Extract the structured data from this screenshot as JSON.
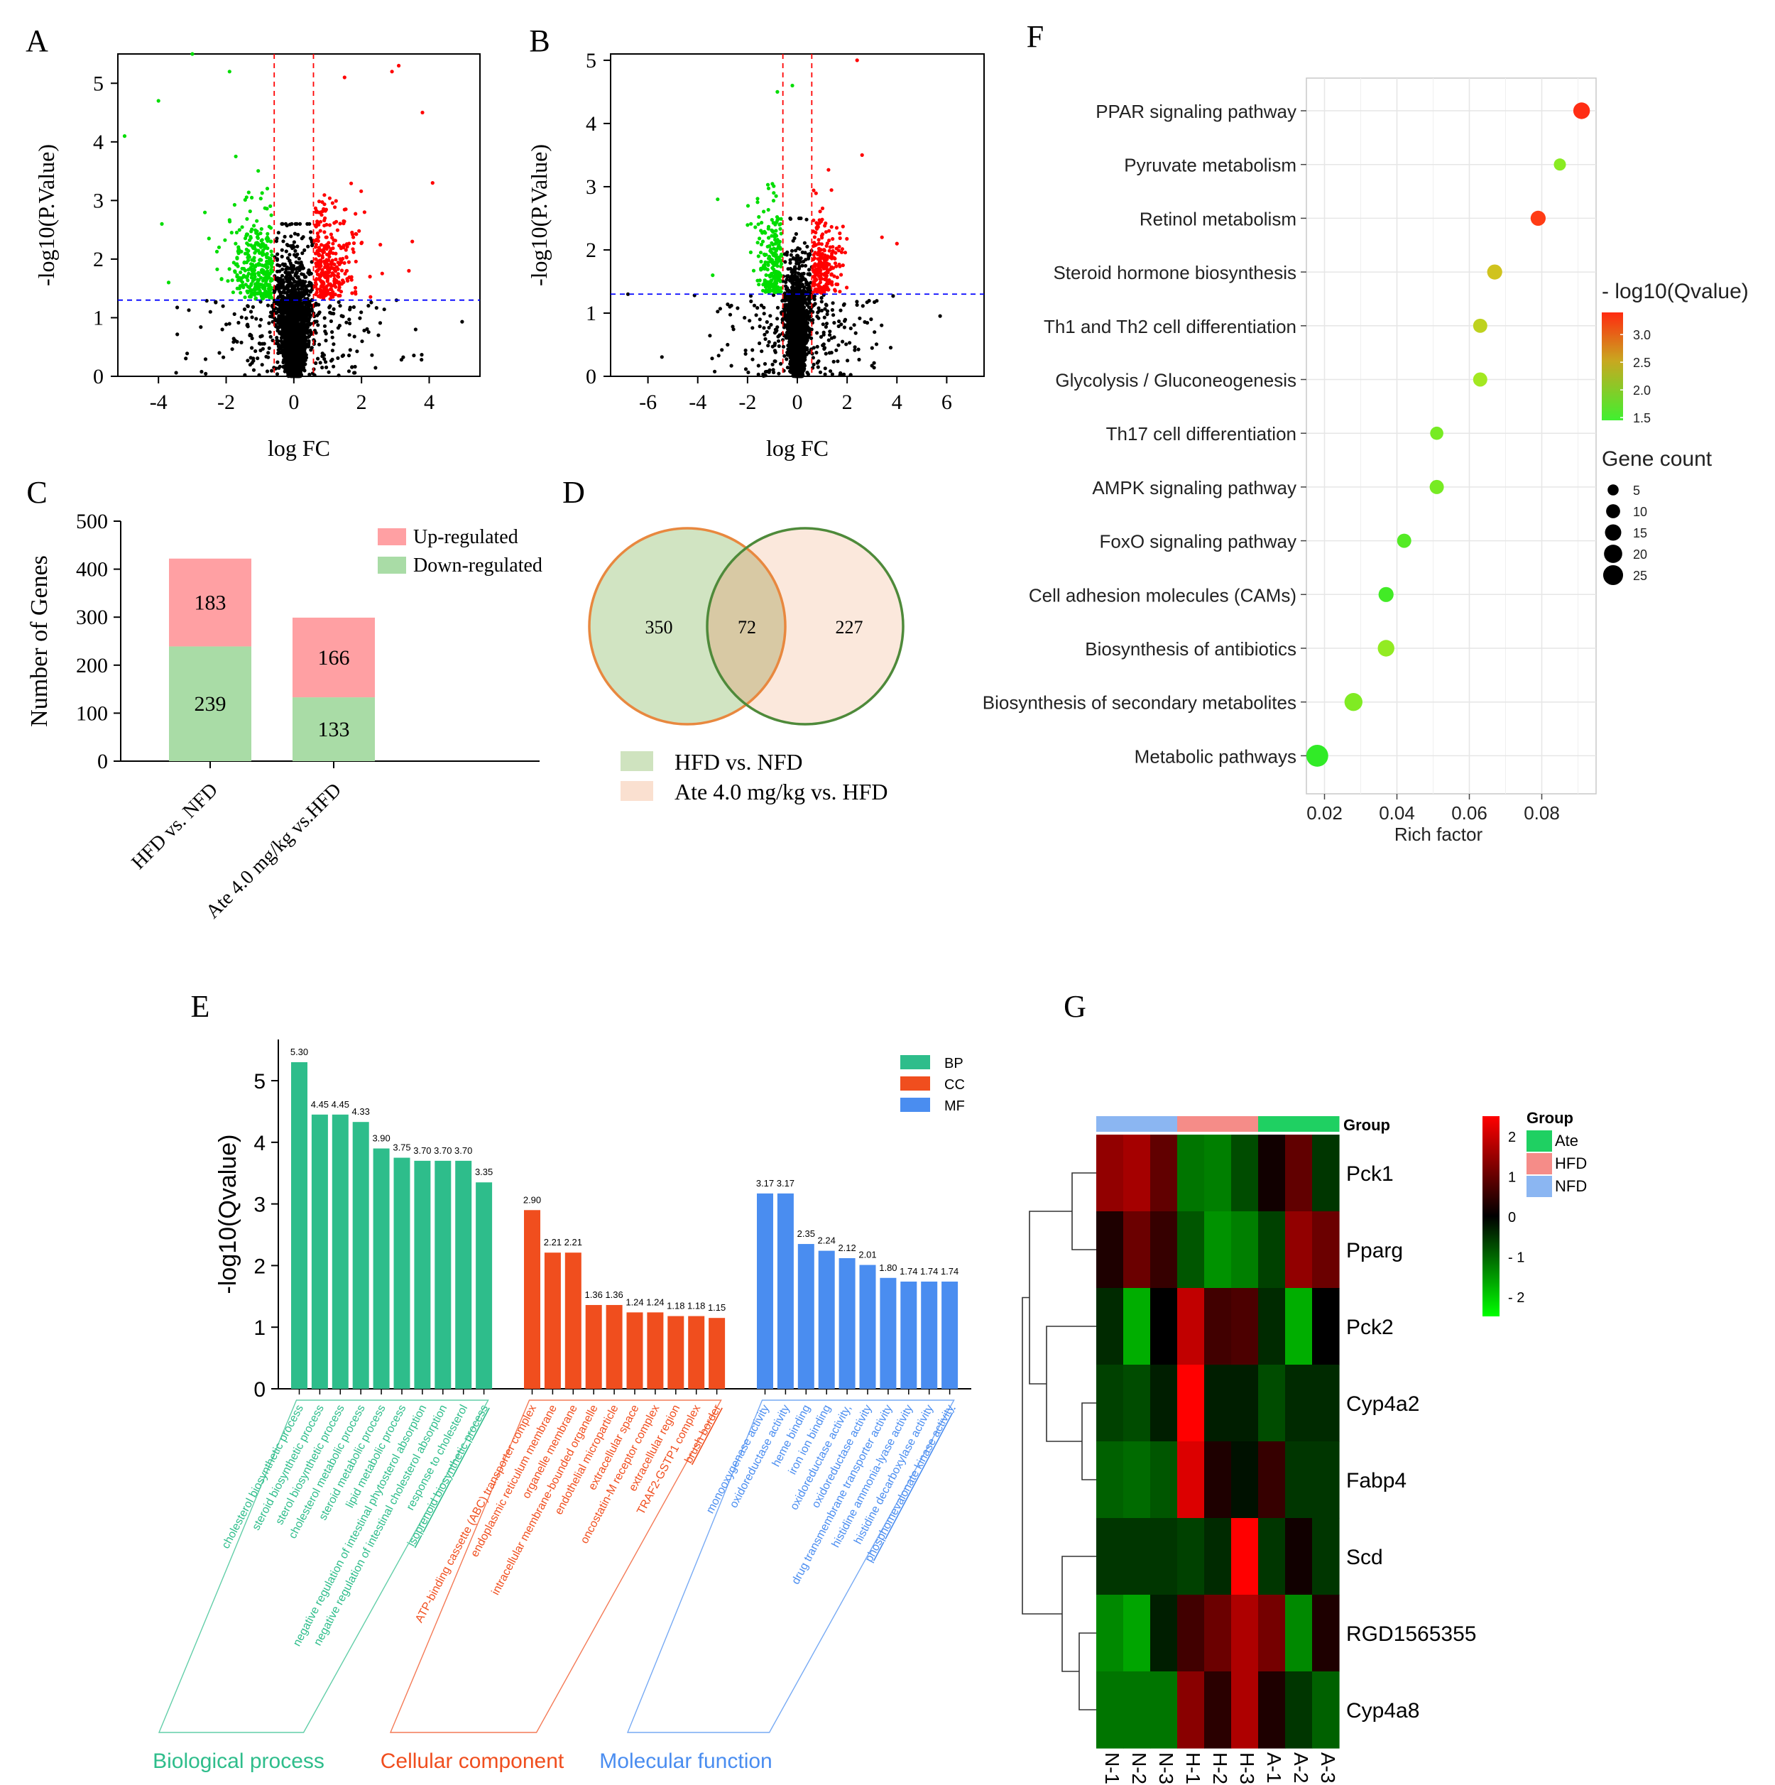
{
  "panel_labels": [
    "A",
    "B",
    "C",
    "D",
    "E",
    "F",
    "G"
  ],
  "chart_data": [
    {
      "id": "A",
      "type": "scatter",
      "title": "",
      "xlabel": "log FC",
      "ylabel": "-log10(P.Value)",
      "xlim": [
        -5.2,
        5.5
      ],
      "ylim": [
        0,
        5.5
      ],
      "xticks": [
        -4,
        -2,
        0,
        2,
        4
      ],
      "yticks": [
        0,
        1,
        2,
        3,
        4,
        5
      ],
      "thresholds": {
        "logfc": [
          -0.58,
          0.58
        ],
        "neglog10p": 1.3
      },
      "colors": {
        "up": "#ff0000",
        "down": "#00dd00",
        "ns": "#000000",
        "threshold_v": "#ff0000",
        "threshold_h": "#0000ff"
      },
      "note": "Points generated from summary shape: down-regulated green left, up-regulated red right, non-significant black V."
    },
    {
      "id": "B",
      "type": "scatter",
      "title": "",
      "xlabel": "log FC",
      "ylabel": "-log10(P.Value)",
      "xlim": [
        -7.5,
        7.5
      ],
      "ylim": [
        0,
        5.1
      ],
      "xticks": [
        -6,
        -4,
        -2,
        0,
        2,
        4,
        6
      ],
      "yticks": [
        0,
        1,
        2,
        3,
        4,
        5
      ],
      "thresholds": {
        "logfc": [
          -0.58,
          0.58
        ],
        "neglog10p": 1.3
      },
      "colors": {
        "up": "#ff0000",
        "down": "#00dd00",
        "ns": "#000000",
        "threshold_v": "#ff0000",
        "threshold_h": "#0000ff"
      }
    },
    {
      "id": "C",
      "type": "bar",
      "stacked": true,
      "categories": [
        "HFD vs. NFD",
        "Ate 4.0 mg/kg vs.HFD"
      ],
      "series": [
        {
          "name": "Down-regulated",
          "values": [
            239,
            133
          ],
          "color": "#a9dca6"
        },
        {
          "name": "Up-regulated",
          "values": [
            183,
            166
          ],
          "color": "#ffa0a3"
        }
      ],
      "ylabel": "Number of Genes",
      "ylim": [
        0,
        500
      ],
      "yticks": [
        0,
        100,
        200,
        300,
        400,
        500
      ],
      "legend": "top-right"
    },
    {
      "id": "D",
      "type": "venn",
      "sets": [
        {
          "name": "HFD vs. NFD",
          "only": 350,
          "fill": "#cfe3bf",
          "stroke": "#e8883f"
        },
        {
          "name": "Ate 4.0 mg/kg vs. HFD",
          "only": 227,
          "fill": "#fae0d0",
          "stroke": "#4e8a3a"
        }
      ],
      "intersection": 72
    },
    {
      "id": "E",
      "type": "bar",
      "ylabel": "-log10(Qvalue)",
      "ylim": [
        0,
        5.4
      ],
      "yticks": [
        0,
        1,
        2,
        3,
        4,
        5
      ],
      "groups": [
        {
          "key": "BP",
          "name": "Biological process",
          "color": "#2ebd8b",
          "categories": [
            "cholesterol biosynthetic process",
            "steroid biosynthetic process",
            "sterol biosynthetic process",
            "cholesterol metabolic process",
            "steroid metabolic process",
            "lipid metabolic process",
            "negative regulation of intestinal phytosterol absorption",
            "negative regulation of intestinal cholesterol absorption",
            "response to cholesterol",
            "isoprenoid biosynthetic process"
          ],
          "values": [
            5.3,
            4.45,
            4.45,
            4.33,
            3.9,
            3.75,
            3.7,
            3.7,
            3.7,
            3.35
          ],
          "labels": [
            "5.30",
            "4.45",
            "4.45",
            "4.33",
            "3.90",
            "3.75",
            "3.70",
            "3.70",
            "3.70",
            "3.35"
          ]
        },
        {
          "key": "CC",
          "name": "Cellular component",
          "color": "#f04e1e",
          "categories": [
            "ATP-binding cassette (ABC) transporter complex",
            "endoplasmic reticulum membrane",
            "organelle membrane",
            "intracellular membrane-bounded organelle",
            "endothelial microparticle",
            "extracellular space",
            "oncostatin-M receptor complex",
            "extracellular region",
            "TRAF2-GSTP1 complex",
            "brush border"
          ],
          "values": [
            2.9,
            2.21,
            2.21,
            1.36,
            1.36,
            1.24,
            1.24,
            1.18,
            1.18,
            1.15
          ],
          "labels": [
            "2.90",
            "2.21",
            "2.21",
            "1.36",
            "1.36",
            "1.24",
            "1.24",
            "1.18",
            "1.18",
            "1.15"
          ]
        },
        {
          "key": "MF",
          "name": "Molecular function",
          "color": "#4a8df0",
          "categories": [
            "monooxygenase activity",
            "oxidoreductase activity",
            "heme binding",
            "iron ion binding",
            "oxidoreductase activity,",
            "oxidoreductase activity",
            "drug transmembrane transporter activity",
            "histidine ammonia-lyase activity",
            "histidine decarboxylase activity",
            "phosphomevalonate kinase activity"
          ],
          "values": [
            3.17,
            3.17,
            2.35,
            2.24,
            2.12,
            2.01,
            1.8,
            1.74,
            1.74,
            1.74
          ],
          "labels": [
            "3.17",
            "3.17",
            "2.35",
            "2.24",
            "2.12",
            "2.01",
            "1.80",
            "1.74",
            "1.74",
            "1.74"
          ]
        }
      ],
      "legend": "top-right"
    },
    {
      "id": "F",
      "type": "scatter",
      "subtype": "bubble",
      "xlabel": "Rich factor",
      "xlim": [
        0.015,
        0.095
      ],
      "xticks": [
        0.02,
        0.04,
        0.06,
        0.08
      ],
      "xticklabels": [
        "0.02",
        "0.04",
        "0.06",
        "0.08"
      ],
      "categories": [
        "PPAR signaling pathway",
        "Pyruvate metabolism",
        "Retinol metabolism",
        "Steroid hormone biosynthesis",
        "Th1 and Th2 cell differentiation",
        "Glycolysis / Gluconeogenesis",
        "Th17 cell differentiation",
        "AMPK signaling pathway",
        "FoxO signaling pathway",
        "Cell adhesion molecules (CAMs)",
        "Biosynthesis of antibiotics",
        "Biosynthesis of secondary metabolites",
        "Metabolic pathways"
      ],
      "rich_factor": [
        0.091,
        0.085,
        0.079,
        0.067,
        0.063,
        0.063,
        0.051,
        0.051,
        0.042,
        0.037,
        0.037,
        0.028,
        0.018
      ],
      "neglog10q": [
        3.4,
        2.0,
        3.3,
        2.4,
        2.3,
        2.15,
        1.9,
        1.9,
        1.7,
        1.6,
        2.05,
        1.95,
        1.5
      ],
      "gene_count": [
        8,
        3,
        6,
        6,
        5,
        5,
        4,
        5,
        5,
        6,
        8,
        10,
        17
      ],
      "color_legend": {
        "title": "- log10(Qvalue)",
        "ticks": [
          "3.0",
          "2.5",
          "2.0",
          "1.5"
        ],
        "tick_values": [
          3.0,
          2.5,
          2.0,
          1.5
        ],
        "range": [
          1.45,
          3.4
        ]
      },
      "size_legend": {
        "title": "Gene count",
        "values": [
          5,
          10,
          15,
          20,
          25
        ],
        "labels": [
          "5",
          "10",
          "15",
          "20",
          "25"
        ]
      }
    },
    {
      "id": "G",
      "type": "heatmap",
      "rows": [
        "Pck1",
        "Pparg",
        "Pck2",
        "Cyp4a2",
        "Fabp4",
        "Scd",
        "RGD1565355",
        "Cyp4a8"
      ],
      "cols": [
        "N-1",
        "N-2",
        "N-3",
        "H-1",
        "H-2",
        "H-3",
        "A-1",
        "A-2",
        "A-3"
      ],
      "col_groups": [
        "NFD",
        "NFD",
        "NFD",
        "HFD",
        "HFD",
        "HFD",
        "Ate",
        "Ate",
        "Ate"
      ],
      "values": [
        [
          1.3,
          1.5,
          0.8,
          -1.0,
          -1.1,
          -0.6,
          0.1,
          0.8,
          -0.4
        ],
        [
          0.2,
          0.9,
          0.4,
          -0.7,
          -1.3,
          -1.1,
          -0.5,
          1.3,
          0.9
        ],
        [
          -0.3,
          -1.6,
          0.0,
          1.8,
          0.5,
          0.6,
          -0.3,
          -1.6,
          0.0
        ],
        [
          -0.5,
          -0.6,
          -0.2,
          2.5,
          -0.2,
          -0.2,
          -0.6,
          -0.3,
          -0.3
        ],
        [
          -0.8,
          -0.9,
          -0.7,
          2.1,
          0.2,
          -0.1,
          0.4,
          -0.4,
          -0.4
        ],
        [
          -0.4,
          -0.4,
          -0.4,
          -0.5,
          -0.3,
          2.5,
          -0.4,
          0.1,
          -0.4
        ],
        [
          -1.2,
          -1.5,
          -0.2,
          0.5,
          0.9,
          1.6,
          1.0,
          -1.2,
          0.2
        ],
        [
          -1.0,
          -1.0,
          -1.0,
          1.2,
          0.3,
          1.6,
          0.2,
          -0.4,
          -0.8
        ]
      ],
      "group_row_label": "Group",
      "color_scale": {
        "min": -2.5,
        "max": 2.5,
        "ticks": [
          "2",
          "1",
          "0",
          "- 1",
          "- 2"
        ],
        "tick_values": [
          2,
          1,
          0,
          -1,
          -2
        ]
      },
      "group_legend": {
        "title": "Group",
        "items": [
          {
            "name": "Ate",
            "color": "#1fd062"
          },
          {
            "name": "HFD",
            "color": "#f58c88"
          },
          {
            "name": "NFD",
            "color": "#8bb6f2"
          }
        ]
      }
    }
  ]
}
